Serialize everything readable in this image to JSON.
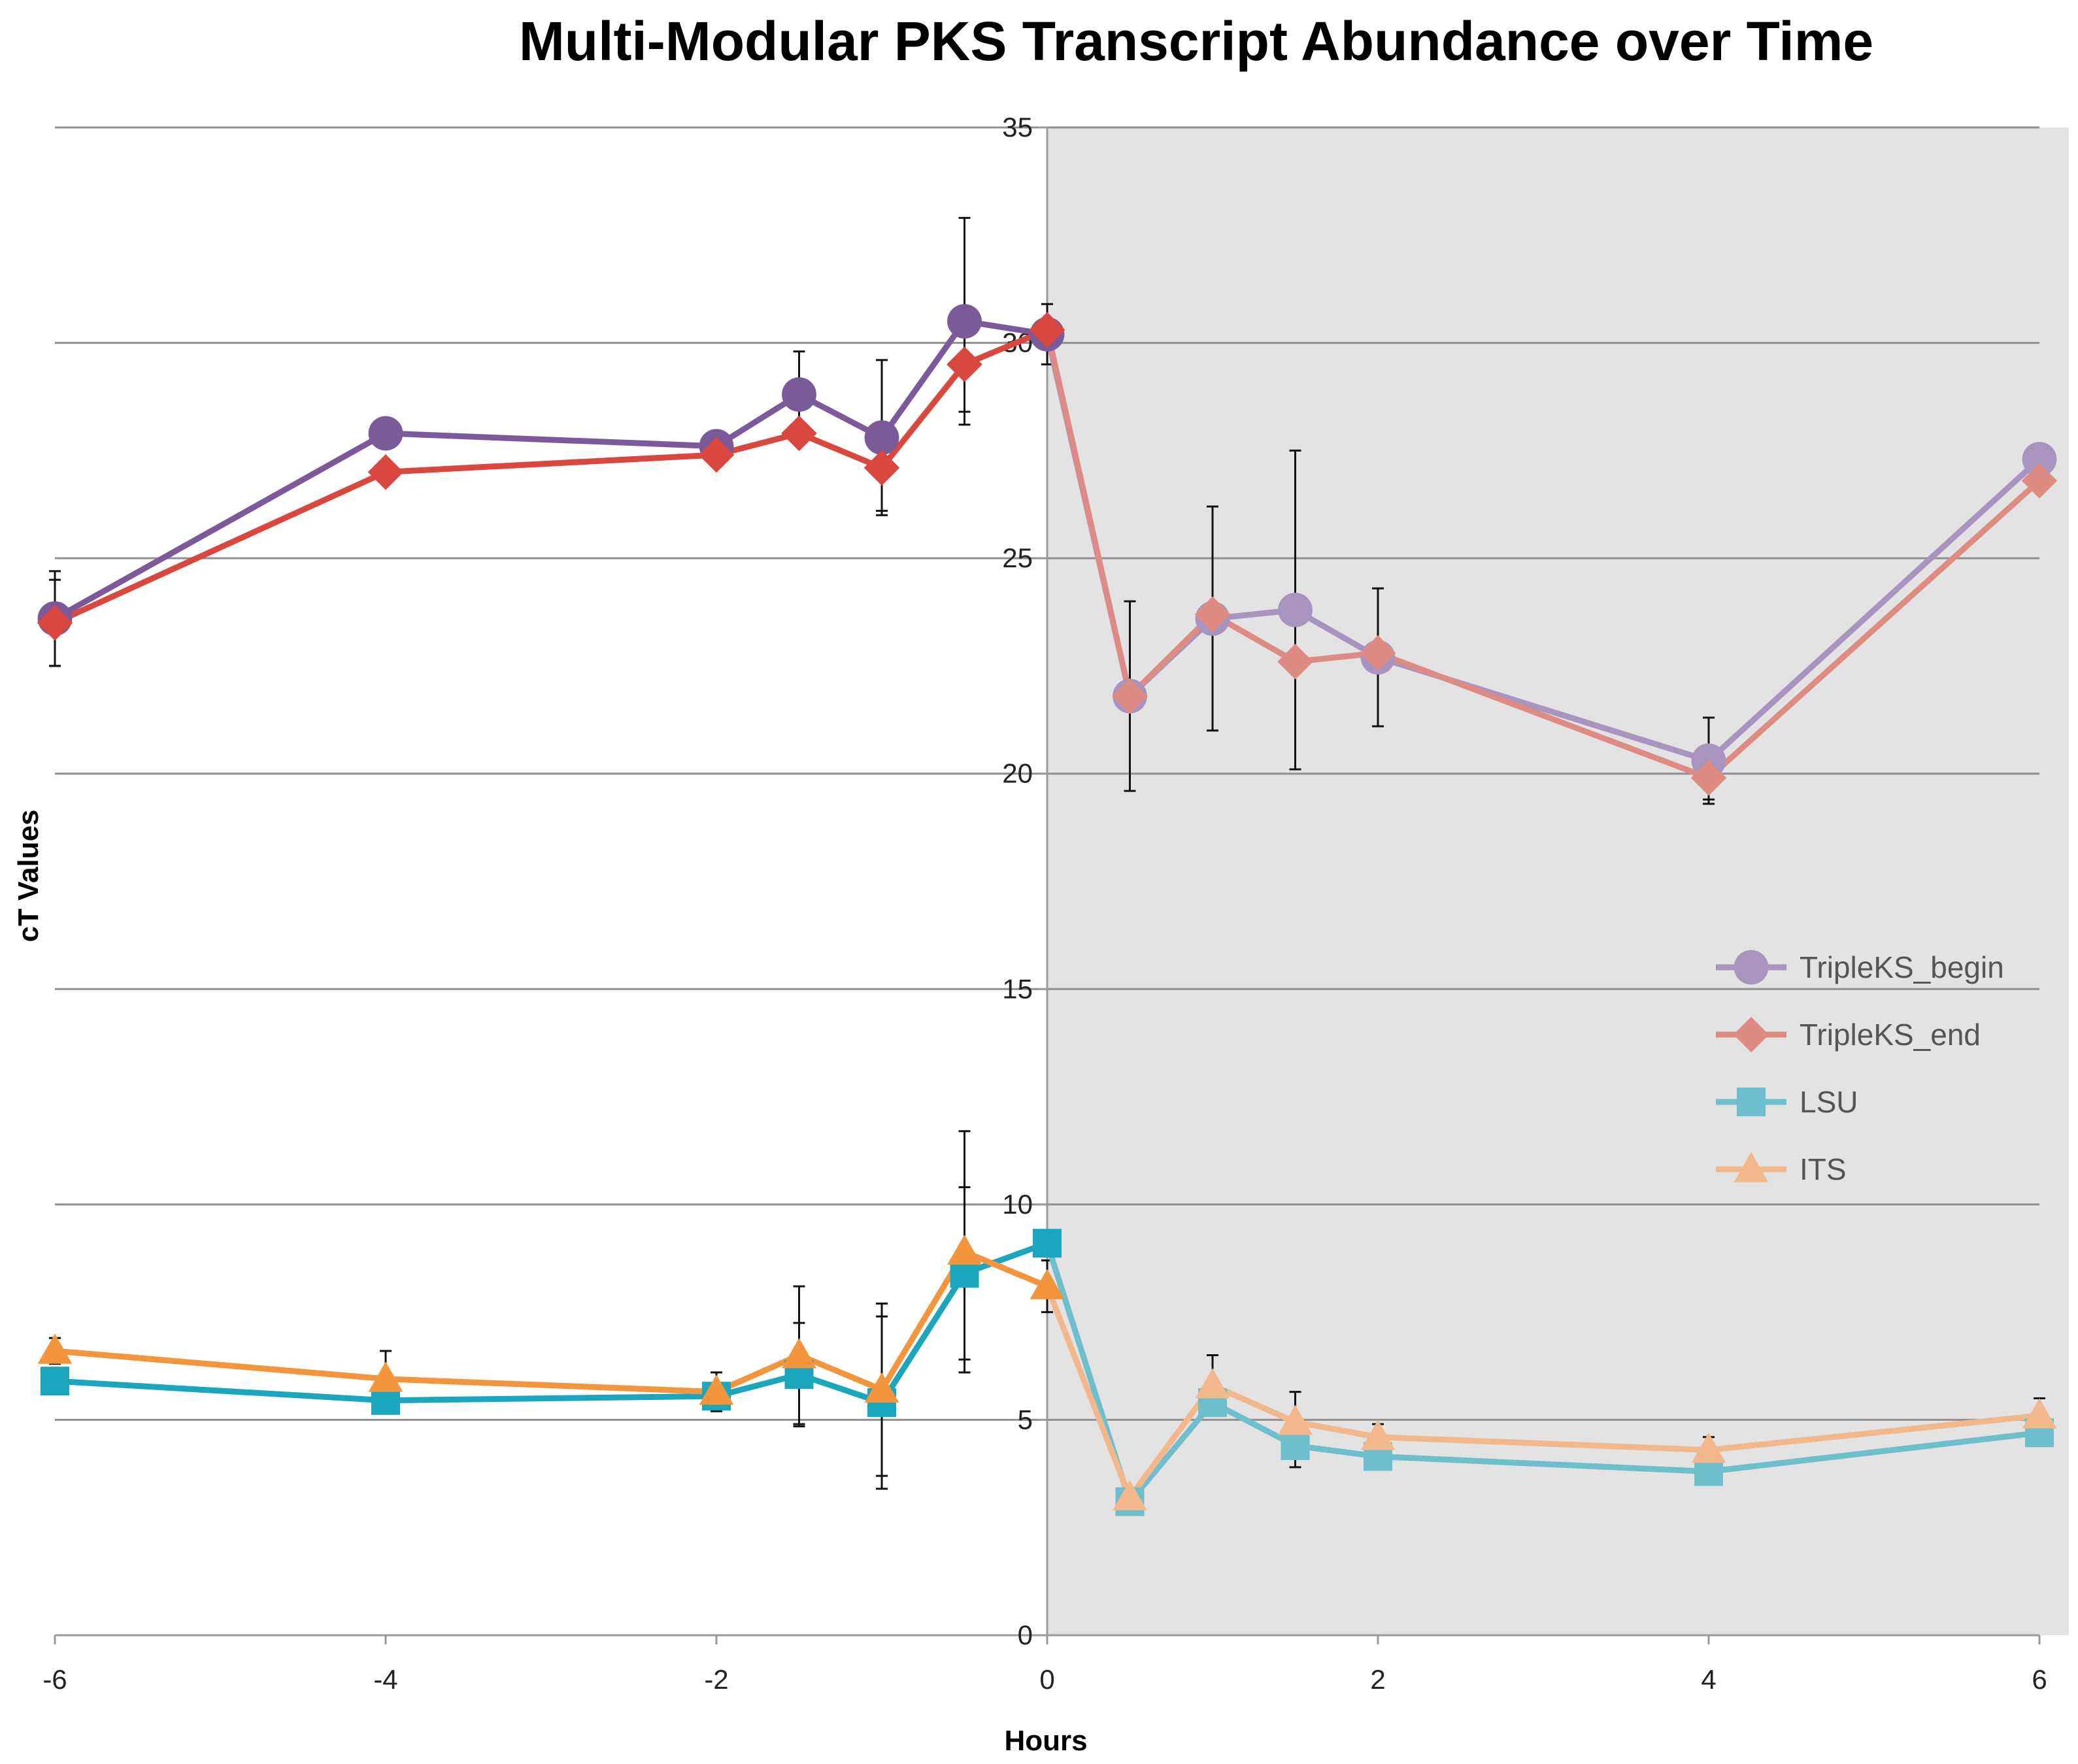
{
  "chart_data": {
    "type": "line",
    "title": "Multi-Modular PKS Transcript Abundance over Time",
    "xlabel": "Hours",
    "ylabel": "cT Values",
    "xlim": [
      -6,
      6
    ],
    "ylim": [
      0,
      35
    ],
    "xticks": [
      -6,
      -4,
      -2,
      0,
      2,
      4,
      6
    ],
    "yticks": [
      0,
      5,
      10,
      15,
      20,
      25,
      30,
      35
    ],
    "grid": "horizontal",
    "shaded_region": {
      "x_from": 0,
      "x_to": 6,
      "color": "#e3e3e3"
    },
    "legend_position": "right",
    "x": [
      -6,
      -4,
      -2,
      -1.5,
      -1,
      -0.5,
      0,
      0.5,
      1,
      1.5,
      2,
      4,
      6
    ],
    "series": [
      {
        "name": "TripleKS_begin",
        "marker": "circle",
        "color": "#7b5a99",
        "faded_color": "#a794bf",
        "values": [
          23.6,
          27.9,
          27.6,
          28.8,
          27.8,
          30.5,
          30.2,
          21.8,
          23.6,
          23.8,
          22.7,
          20.3,
          27.3
        ],
        "error": [
          1.1,
          0.3,
          0.3,
          1.0,
          1.8,
          2.4,
          0.7,
          2.2,
          2.6,
          3.7,
          1.6,
          1.0,
          0.3
        ]
      },
      {
        "name": "TripleKS_end",
        "marker": "diamond",
        "color": "#d9473f",
        "faded_color": "#de8c83",
        "values": [
          23.5,
          27.0,
          27.4,
          27.9,
          27.1,
          29.5,
          30.3,
          21.8,
          23.7,
          22.6,
          22.8,
          19.9,
          26.8
        ],
        "error": [
          1.0,
          0.0,
          0.0,
          0.0,
          1.0,
          1.1,
          0.0,
          0.0,
          0.0,
          0.0,
          0.0,
          0.5,
          0.0
        ]
      },
      {
        "name": "LSU",
        "marker": "square",
        "color": "#1aa7bd",
        "faded_color": "#6ebfce",
        "values": [
          5.9,
          5.45,
          5.55,
          6.05,
          5.4,
          8.4,
          9.1,
          3.1,
          5.4,
          4.4,
          4.15,
          3.8,
          4.7
        ],
        "error": [
          0.0,
          0.0,
          0.0,
          1.2,
          2.0,
          2.0,
          0.0,
          0.0,
          0.0,
          0.5,
          0.0,
          0.0,
          0.0
        ]
      },
      {
        "name": "ITS",
        "marker": "triangle",
        "color": "#f4953c",
        "faded_color": "#f2b88c",
        "values": [
          6.6,
          5.95,
          5.65,
          6.5,
          5.7,
          8.9,
          8.1,
          3.2,
          5.8,
          4.95,
          4.6,
          4.3,
          5.1
        ],
        "error": [
          0.3,
          0.65,
          0.45,
          1.6,
          2.0,
          2.8,
          0.6,
          0.0,
          0.7,
          0.7,
          0.3,
          0.3,
          0.4
        ]
      }
    ]
  }
}
